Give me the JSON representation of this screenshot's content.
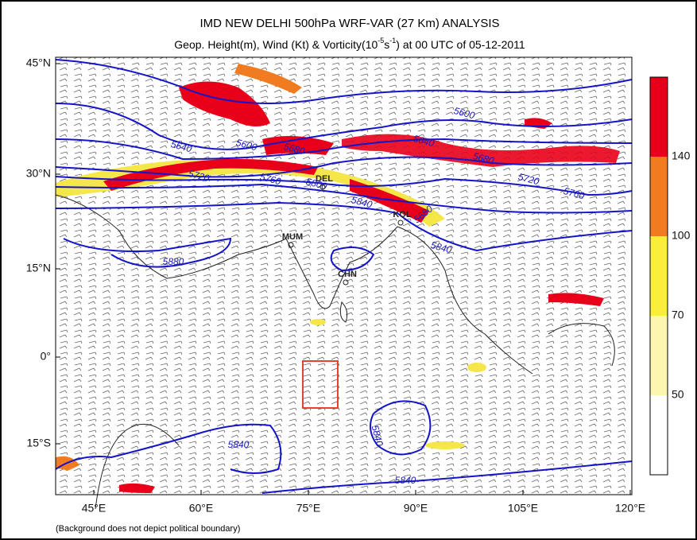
{
  "header": {
    "title": "IMD NEW DELHI 500hPa WRF-VAR (27 Km) ANALYSIS",
    "subtitle_parts": [
      "Geop. Height(m), Wind (Kt) & Vorticity(10",
      "-5",
      "s",
      "-1",
      ") at 00 UTC of 05-12-2011"
    ]
  },
  "map": {
    "lat_labels": [
      "45°N",
      "30°N",
      "15°N",
      "0°",
      "15°S"
    ],
    "lon_labels": [
      "45°E",
      "60°E",
      "75°E",
      "90°E",
      "105°E",
      "120°E"
    ],
    "contour_labels": [
      "5640",
      "5600",
      "5680",
      "5720",
      "5760",
      "5800",
      "5840",
      "5600",
      "5640",
      "5680",
      "5720",
      "5760",
      "5680",
      "5840",
      "5880",
      "5840",
      "5840",
      "5840"
    ],
    "stations": [
      "DEL",
      "MUM",
      "CHN",
      "KOL"
    ]
  },
  "colorbar": {
    "labels": [
      "140",
      "100",
      "70",
      "50"
    ]
  },
  "footnote": "(Background does not depict political boundary)"
}
